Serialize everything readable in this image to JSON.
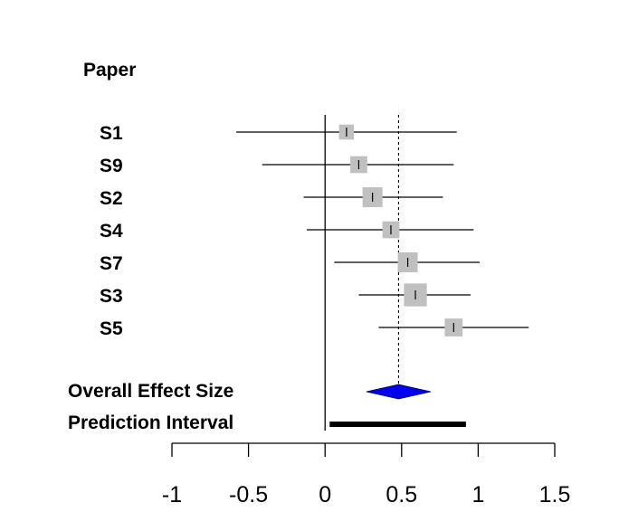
{
  "chart_data": {
    "type": "forest",
    "header": "Paper",
    "studies": [
      {
        "label": "S1",
        "estimate": 0.14,
        "lower": -0.58,
        "upper": 0.86,
        "weight": 0.75
      },
      {
        "label": "S9",
        "estimate": 0.22,
        "lower": -0.41,
        "upper": 0.84,
        "weight": 0.85
      },
      {
        "label": "S2",
        "estimate": 0.31,
        "lower": -0.14,
        "upper": 0.77,
        "weight": 1.0
      },
      {
        "label": "S4",
        "estimate": 0.43,
        "lower": -0.12,
        "upper": 0.97,
        "weight": 0.85
      },
      {
        "label": "S7",
        "estimate": 0.54,
        "lower": 0.06,
        "upper": 1.01,
        "weight": 1.0
      },
      {
        "label": "S3",
        "estimate": 0.59,
        "lower": 0.22,
        "upper": 0.95,
        "weight": 1.15
      },
      {
        "label": "S5",
        "estimate": 0.84,
        "lower": 0.35,
        "upper": 1.33,
        "weight": 0.9
      }
    ],
    "overall": {
      "label": "Overall Effect Size",
      "estimate": 0.48,
      "lower": 0.27,
      "upper": 0.69
    },
    "prediction_interval": {
      "label": "Prediction Interval",
      "lower": 0.03,
      "upper": 0.92
    },
    "x_ticks": [
      -1,
      -0.5,
      0,
      0.5,
      1,
      1.5
    ],
    "tick_labels": [
      "-1",
      "-0.5",
      "0",
      "0.5",
      "1",
      "1.5"
    ],
    "xlim": [
      -1,
      1.5
    ],
    "reference_line": 0,
    "summary_line": 0.48,
    "colors": {
      "square": "#c0c0c0",
      "diamond": "#0000ee",
      "line": "#000000"
    }
  }
}
